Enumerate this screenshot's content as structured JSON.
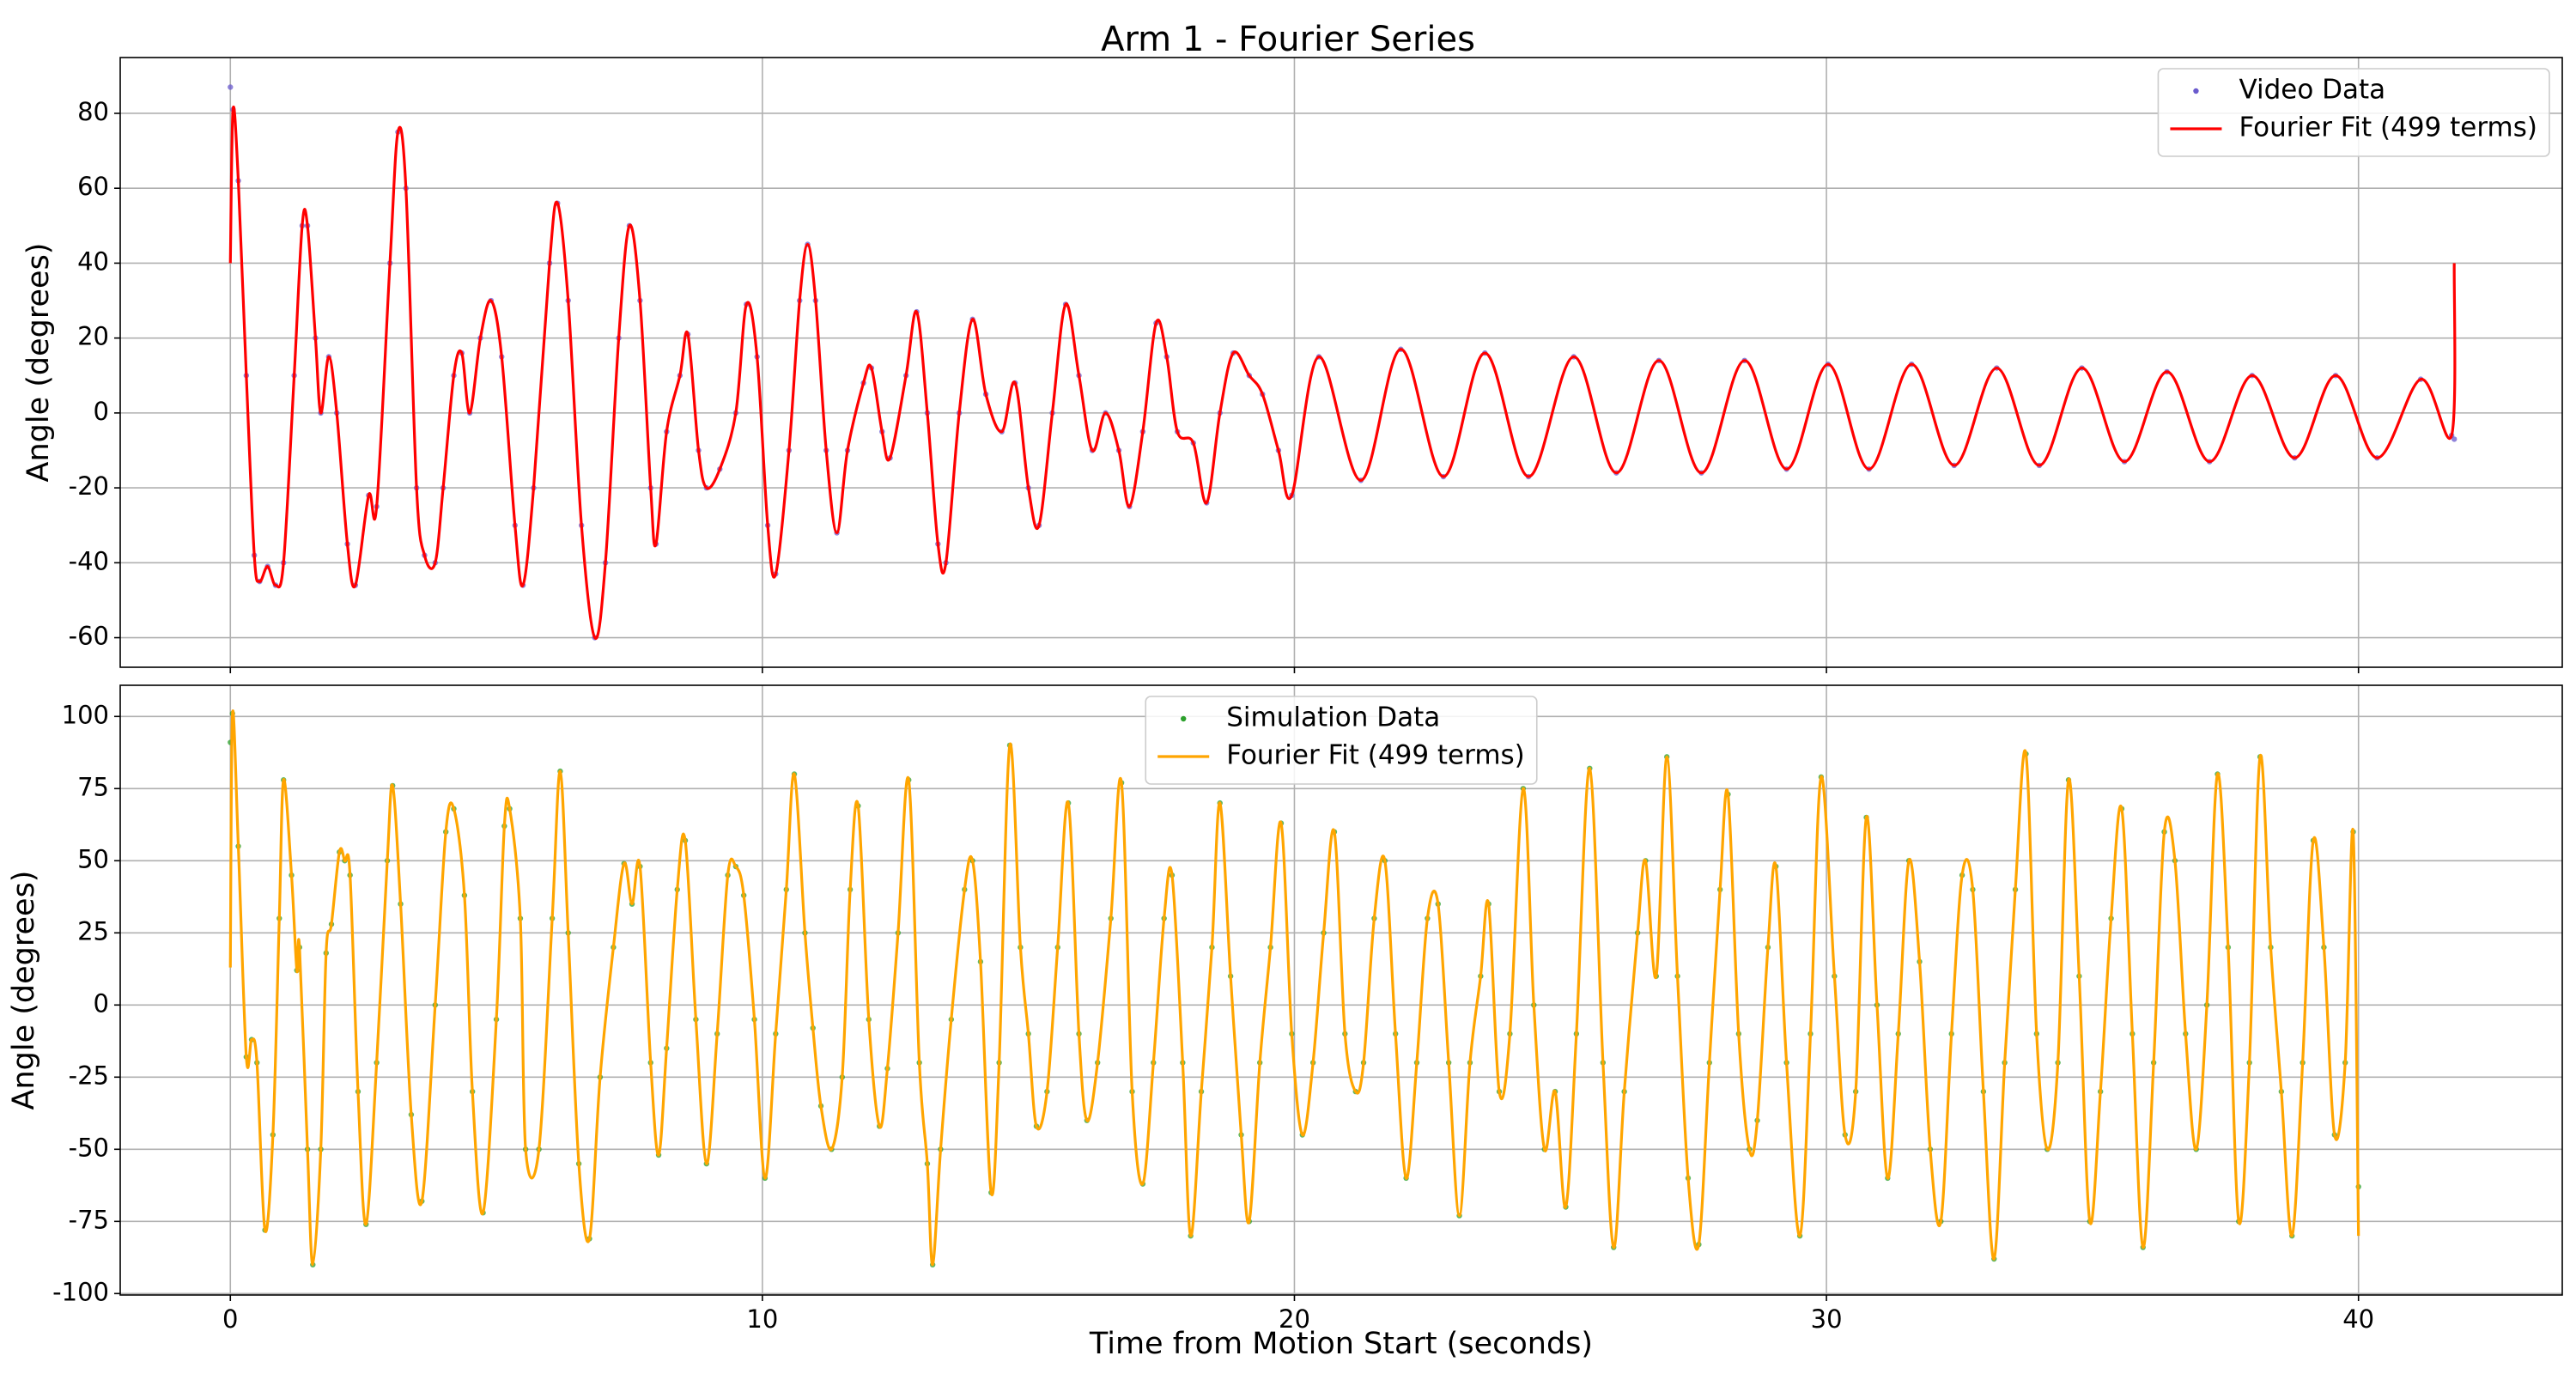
{
  "chart_data": [
    {
      "type": "line",
      "title": "Arm 1 - Fourier Series",
      "ylabel": "Angle (degrees)",
      "xlim": [
        -2.07,
        43.83
      ],
      "xticks": [
        0,
        10,
        20,
        30,
        40
      ],
      "show_xticklabels": false,
      "ylim": [
        -67.9,
        94.9
      ],
      "yticks": [
        -60,
        -40,
        -20,
        0,
        20,
        40,
        60,
        80
      ],
      "grid": true,
      "legend": "upper right",
      "x": [
        0,
        0.05,
        0.15,
        0.3,
        0.45,
        0.55,
        0.7,
        0.85,
        1.0,
        1.2,
        1.35,
        1.45,
        1.6,
        1.7,
        1.85,
        2.0,
        2.2,
        2.35,
        2.6,
        2.75,
        3.0,
        3.15,
        3.3,
        3.5,
        3.65,
        3.85,
        4.0,
        4.2,
        4.35,
        4.5,
        4.7,
        4.9,
        5.1,
        5.35,
        5.5,
        5.7,
        6.0,
        6.15,
        6.35,
        6.6,
        6.85,
        7.05,
        7.3,
        7.5,
        7.7,
        7.9,
        8.0,
        8.2,
        8.45,
        8.6,
        8.8,
        8.95,
        9.2,
        9.5,
        9.7,
        9.9,
        10.1,
        10.25,
        10.5,
        10.7,
        10.85,
        11.0,
        11.2,
        11.4,
        11.6,
        11.9,
        12.05,
        12.25,
        12.4,
        12.7,
        12.9,
        13.1,
        13.3,
        13.45,
        13.7,
        13.95,
        14.2,
        14.5,
        14.75,
        15.0,
        15.2,
        15.45,
        15.7,
        15.95,
        16.2,
        16.45,
        16.7,
        16.9,
        17.15,
        17.4,
        17.6,
        17.8,
        18.1,
        18.35,
        18.6,
        18.85,
        19.15,
        19.4,
        19.7,
        19.95,
        20.46,
        21.25,
        22.0,
        22.8,
        23.58,
        24.4,
        25.25,
        26.05,
        26.85,
        27.65,
        28.46,
        29.25,
        30.03,
        30.8,
        31.6,
        32.4,
        33.2,
        34.0,
        34.8,
        35.6,
        36.4,
        37.2,
        38.0,
        38.8,
        39.57,
        40.35,
        41.17,
        41.75,
        41.8
      ],
      "series": [
        {
          "name": "Video Data",
          "type": "scatter",
          "color": "#6a5acd",
          "values": [
            87,
            81,
            62,
            10,
            -38,
            -45,
            -41,
            -46,
            -40,
            10,
            50,
            50,
            20,
            0,
            15,
            0,
            -35,
            -46,
            -22,
            -25,
            40,
            75,
            60,
            -20,
            -38,
            -40,
            -20,
            10,
            16,
            0,
            20,
            30,
            15,
            -30,
            -46,
            -20,
            40,
            56,
            30,
            -30,
            -60,
            -40,
            20,
            50,
            30,
            -20,
            -35,
            -5,
            10,
            21,
            -10,
            -20,
            -15,
            0,
            29,
            15,
            -30,
            -43,
            -10,
            30,
            45,
            30,
            -10,
            -32,
            -10,
            8,
            12,
            -5,
            -12,
            10,
            27,
            0,
            -35,
            -40,
            0,
            25,
            5,
            -5,
            8,
            -20,
            -30,
            0,
            29,
            10,
            -10,
            0,
            -10,
            -25,
            -5,
            24,
            15,
            -5,
            -8,
            -24,
            0,
            16,
            10,
            5,
            -10,
            -22,
            15,
            -18,
            17,
            -17,
            16,
            -17,
            15,
            -16,
            14,
            -16,
            14,
            -15,
            13,
            -15,
            13,
            -14,
            12,
            -14,
            12,
            -13,
            11,
            -13,
            10,
            -12,
            10,
            -12,
            9,
            -6,
            -7
          ]
        },
        {
          "name": "Fourier Fit (499 terms)",
          "type": "line",
          "color": "#ff0000",
          "values": [
            40,
            81,
            62,
            10,
            -38,
            -45,
            -41,
            -46,
            -40,
            10,
            50,
            50,
            20,
            0,
            15,
            0,
            -35,
            -46,
            -22,
            -25,
            40,
            75,
            60,
            -20,
            -38,
            -40,
            -20,
            10,
            16,
            0,
            20,
            30,
            15,
            -30,
            -46,
            -20,
            40,
            56,
            30,
            -30,
            -60,
            -40,
            20,
            50,
            30,
            -20,
            -35,
            -5,
            10,
            21,
            -10,
            -20,
            -15,
            0,
            29,
            15,
            -30,
            -43,
            -10,
            30,
            45,
            30,
            -10,
            -32,
            -10,
            8,
            12,
            -5,
            -12,
            10,
            27,
            0,
            -35,
            -40,
            0,
            25,
            5,
            -5,
            8,
            -20,
            -30,
            0,
            29,
            10,
            -10,
            0,
            -10,
            -25,
            -5,
            24,
            15,
            -5,
            -8,
            -24,
            0,
            16,
            10,
            5,
            -10,
            -22,
            15,
            -18,
            17,
            -17,
            16,
            -17,
            15,
            -16,
            14,
            -16,
            14,
            -15,
            13,
            -15,
            13,
            -14,
            12,
            -14,
            12,
            -13,
            11,
            -13,
            10,
            -12,
            10,
            -12,
            9,
            -6,
            40
          ]
        }
      ]
    },
    {
      "type": "line",
      "ylabel": "Angle (degrees)",
      "xlabel": "Time from Motion Start (seconds)",
      "xlim": [
        -2.07,
        43.83
      ],
      "xticks": [
        0,
        10,
        20,
        30,
        40
      ],
      "show_xticklabels": true,
      "ylim": [
        -100.5,
        110.8
      ],
      "yticks": [
        -100,
        -75,
        -50,
        -25,
        0,
        25,
        50,
        75,
        100
      ],
      "grid": true,
      "legend": "upper center",
      "x": [
        0,
        0.04,
        0.15,
        0.3,
        0.4,
        0.5,
        0.65,
        0.8,
        0.92,
        1.0,
        1.15,
        1.25,
        1.3,
        1.45,
        1.55,
        1.7,
        1.8,
        1.9,
        2.05,
        2.15,
        2.25,
        2.4,
        2.55,
        2.75,
        2.95,
        3.05,
        3.2,
        3.4,
        3.6,
        3.85,
        4.05,
        4.2,
        4.4,
        4.55,
        4.75,
        5.0,
        5.15,
        5.25,
        5.45,
        5.55,
        5.8,
        6.05,
        6.2,
        6.35,
        6.55,
        6.75,
        6.95,
        7.2,
        7.4,
        7.55,
        7.7,
        7.9,
        8.05,
        8.2,
        8.4,
        8.55,
        8.75,
        8.95,
        9.15,
        9.35,
        9.5,
        9.65,
        9.85,
        10.05,
        10.25,
        10.45,
        10.6,
        10.8,
        10.95,
        11.1,
        11.3,
        11.5,
        11.65,
        11.8,
        12.0,
        12.2,
        12.35,
        12.55,
        12.75,
        12.95,
        13.1,
        13.2,
        13.35,
        13.55,
        13.8,
        13.95,
        14.1,
        14.3,
        14.45,
        14.65,
        14.85,
        15.0,
        15.15,
        15.35,
        15.55,
        15.75,
        15.95,
        16.1,
        16.3,
        16.55,
        16.75,
        16.95,
        17.15,
        17.35,
        17.55,
        17.7,
        17.9,
        18.05,
        18.25,
        18.45,
        18.6,
        18.8,
        19.0,
        19.15,
        19.35,
        19.55,
        19.75,
        19.95,
        20.15,
        20.35,
        20.55,
        20.75,
        20.95,
        21.15,
        21.3,
        21.5,
        21.7,
        21.9,
        22.1,
        22.3,
        22.5,
        22.7,
        22.9,
        23.1,
        23.3,
        23.5,
        23.65,
        23.85,
        24.05,
        24.3,
        24.5,
        24.7,
        24.9,
        25.1,
        25.3,
        25.55,
        25.8,
        26.0,
        26.2,
        26.45,
        26.6,
        26.8,
        27.0,
        27.2,
        27.4,
        27.6,
        27.8,
        28.0,
        28.15,
        28.35,
        28.55,
        28.7,
        28.9,
        29.05,
        29.25,
        29.5,
        29.7,
        29.9,
        30.15,
        30.35,
        30.55,
        30.75,
        30.95,
        31.15,
        31.35,
        31.55,
        31.75,
        31.95,
        32.15,
        32.35,
        32.55,
        32.75,
        32.95,
        33.15,
        33.35,
        33.55,
        33.75,
        33.95,
        34.15,
        34.35,
        34.55,
        34.75,
        34.95,
        35.15,
        35.35,
        35.55,
        35.75,
        35.95,
        36.15,
        36.35,
        36.55,
        36.75,
        36.95,
        37.15,
        37.35,
        37.55,
        37.75,
        37.95,
        38.15,
        38.35,
        38.55,
        38.75,
        38.95,
        39.15,
        39.35,
        39.55,
        39.75,
        39.9,
        40.0
      ],
      "series": [
        {
          "name": "Simulation Data",
          "type": "scatter",
          "color": "#2ca02c",
          "values": [
            91,
            101,
            55,
            -18,
            -12,
            -20,
            -78,
            -45,
            30,
            78,
            45,
            12,
            20,
            -50,
            -90,
            -50,
            18,
            28,
            53,
            50,
            45,
            -30,
            -76,
            -20,
            50,
            76,
            35,
            -38,
            -68,
            0,
            60,
            68,
            38,
            -30,
            -72,
            -5,
            62,
            68,
            30,
            -50,
            -50,
            30,
            81,
            25,
            -55,
            -81,
            -25,
            20,
            49,
            35,
            48,
            -20,
            -52,
            -15,
            40,
            57,
            -5,
            -55,
            -10,
            45,
            48,
            38,
            -5,
            -60,
            -10,
            40,
            80,
            25,
            -8,
            -35,
            -50,
            -25,
            40,
            69,
            -5,
            -42,
            -22,
            25,
            78,
            -20,
            -55,
            -90,
            -50,
            -5,
            40,
            50,
            15,
            -65,
            -20,
            90,
            20,
            -10,
            -42,
            -30,
            20,
            70,
            -10,
            -40,
            -20,
            30,
            77,
            -30,
            -62,
            -20,
            30,
            45,
            -20,
            -80,
            -30,
            20,
            70,
            10,
            -45,
            -75,
            -20,
            20,
            63,
            -10,
            -45,
            -20,
            25,
            60,
            -10,
            -30,
            -20,
            30,
            50,
            -10,
            -60,
            -20,
            30,
            35,
            -20,
            -73,
            -20,
            10,
            35,
            -30,
            -10,
            75,
            0,
            -50,
            -30,
            -70,
            -10,
            82,
            -20,
            -84,
            -30,
            25,
            50,
            10,
            86,
            10,
            -60,
            -83,
            -20,
            40,
            73,
            -10,
            -50,
            -40,
            20,
            48,
            -20,
            -80,
            -10,
            79,
            10,
            -45,
            -30,
            65,
            0,
            -60,
            -10,
            50,
            15,
            -50,
            -75,
            -10,
            45,
            40,
            -30,
            -88,
            -20,
            40,
            87,
            -10,
            -50,
            -20,
            78,
            10,
            -75,
            -30,
            30,
            68,
            -10,
            -84,
            -20,
            60,
            50,
            -10,
            -50,
            0,
            80,
            20,
            -75,
            -20,
            86,
            20,
            -30,
            -80,
            -20,
            57,
            20,
            -45,
            -20,
            60,
            -63
          ]
        },
        {
          "name": "Fourier Fit (499 terms)",
          "type": "line",
          "color": "#ffa500",
          "values": [
            13,
            101,
            55,
            -18,
            -12,
            -20,
            -78,
            -45,
            30,
            78,
            45,
            12,
            20,
            -50,
            -90,
            -50,
            18,
            28,
            53,
            50,
            45,
            -30,
            -76,
            -20,
            50,
            76,
            35,
            -38,
            -68,
            0,
            60,
            68,
            38,
            -30,
            -72,
            -5,
            62,
            68,
            30,
            -50,
            -50,
            30,
            81,
            25,
            -55,
            -81,
            -25,
            20,
            49,
            35,
            48,
            -20,
            -52,
            -15,
            40,
            57,
            -5,
            -55,
            -10,
            45,
            48,
            38,
            -5,
            -60,
            -10,
            40,
            80,
            25,
            -8,
            -35,
            -50,
            -25,
            40,
            69,
            -5,
            -42,
            -22,
            25,
            78,
            -20,
            -55,
            -90,
            -50,
            -5,
            40,
            50,
            15,
            -65,
            -20,
            90,
            20,
            -10,
            -42,
            -30,
            20,
            70,
            -10,
            -40,
            -20,
            30,
            77,
            -30,
            -62,
            -20,
            30,
            45,
            -20,
            -80,
            -30,
            20,
            70,
            10,
            -45,
            -75,
            -20,
            20,
            63,
            -10,
            -45,
            -20,
            25,
            60,
            -10,
            -30,
            -20,
            30,
            50,
            -10,
            -60,
            -20,
            30,
            35,
            -20,
            -73,
            -20,
            10,
            35,
            -30,
            -10,
            75,
            0,
            -50,
            -30,
            -70,
            -10,
            82,
            -20,
            -84,
            -30,
            25,
            50,
            10,
            86,
            10,
            -60,
            -83,
            -20,
            40,
            73,
            -10,
            -50,
            -40,
            20,
            48,
            -20,
            -80,
            -10,
            79,
            10,
            -45,
            -30,
            65,
            0,
            -60,
            -10,
            50,
            15,
            -50,
            -75,
            -10,
            45,
            40,
            -30,
            -88,
            -20,
            40,
            87,
            -10,
            -50,
            -20,
            78,
            10,
            -75,
            -30,
            30,
            68,
            -10,
            -84,
            -20,
            60,
            50,
            -10,
            -50,
            0,
            80,
            20,
            -75,
            -20,
            86,
            20,
            -30,
            -80,
            -20,
            57,
            20,
            -45,
            -20,
            60,
            -80
          ]
        }
      ]
    }
  ]
}
